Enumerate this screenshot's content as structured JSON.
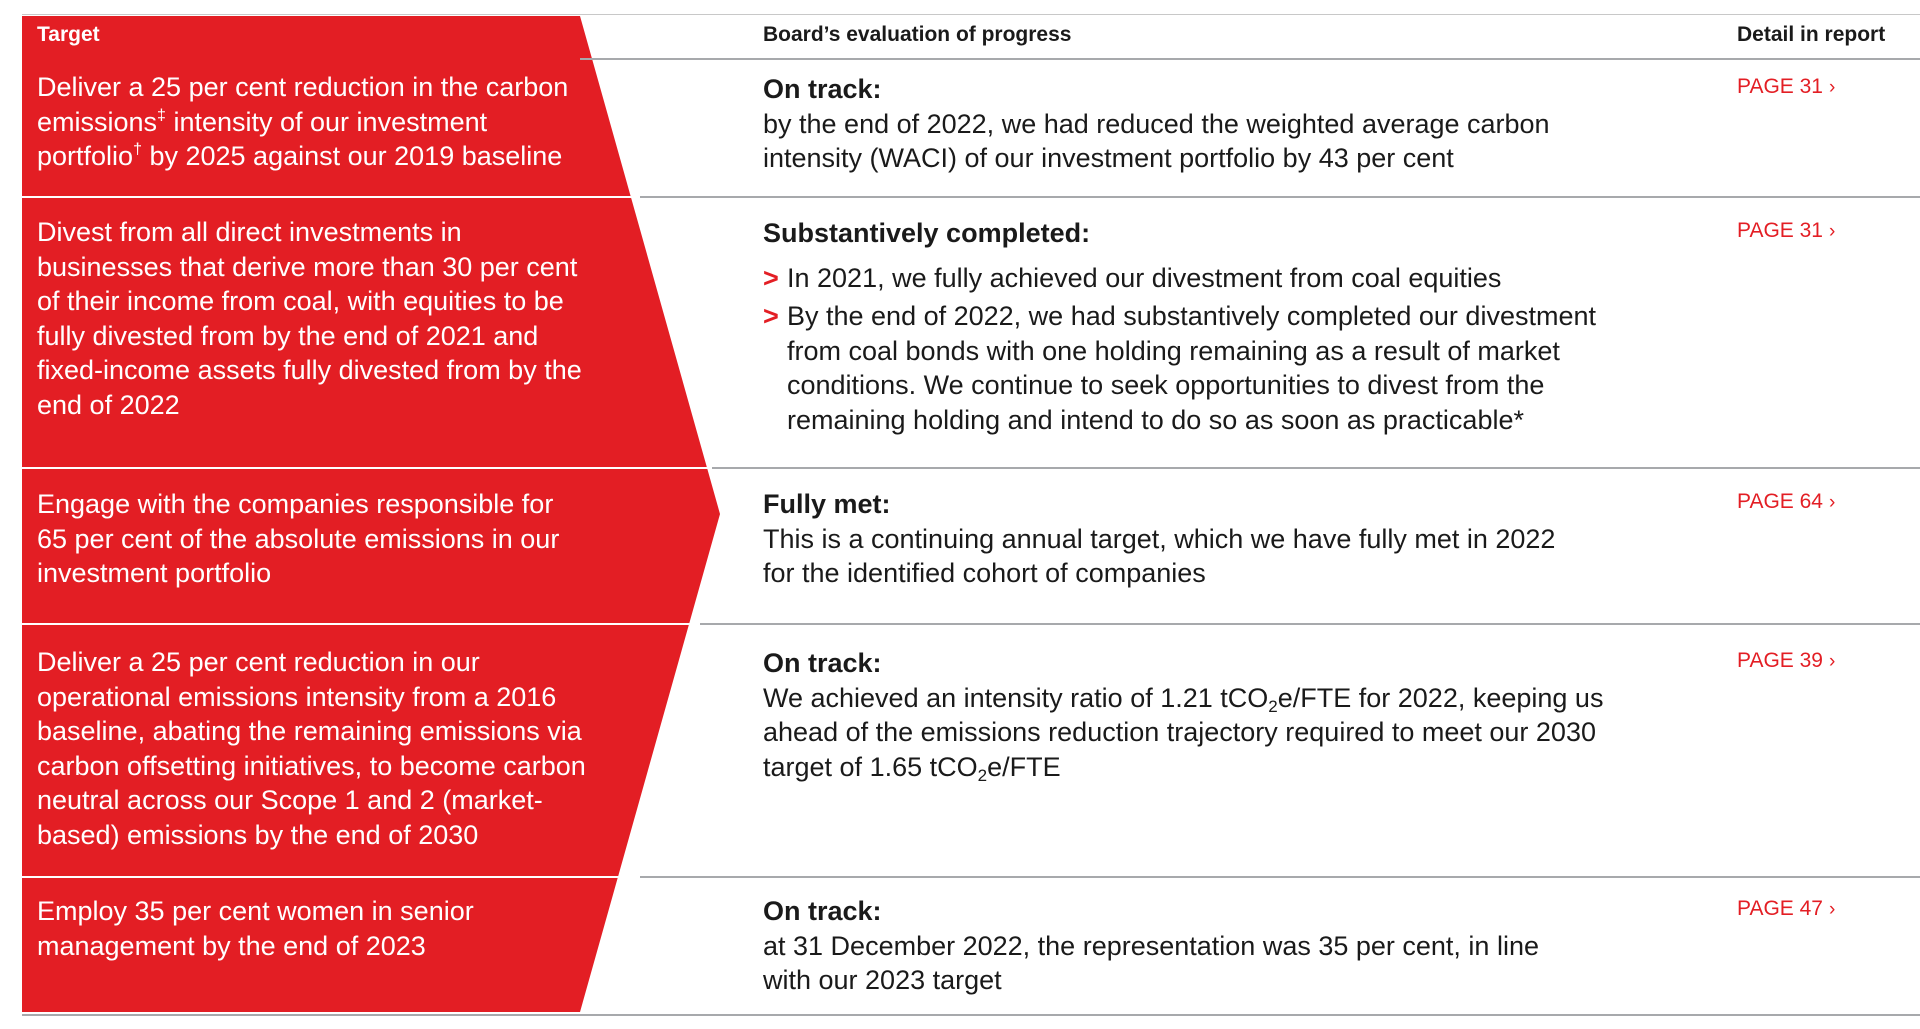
{
  "header": {
    "target": "Target",
    "board_evaluation": "Board’s evaluation of progress",
    "detail": "Detail in report"
  },
  "theme": {
    "accent": "#E31E24",
    "rule": "#A7A9AC",
    "text": "#1A1A1A"
  },
  "rows": [
    {
      "target_parts": [
        "Deliver a 25 per cent reduction in the carbon emissions",
        "‡",
        " intensity of our investment portfolio",
        "†",
        " by 2025 against our 2019 baseline"
      ],
      "status": "On track:",
      "evaluation": "by the end of 2022, we had reduced the weighted average carbon intensity (WACI) of our investment portfolio by 43 per cent",
      "page": "PAGE 31"
    },
    {
      "target": "Divest from all direct investments in businesses that derive more than 30 per cent of their income from coal, with equities to be fully divested from by the end of 2021 and fixed-income assets fully divested from by the end of 2022",
      "status": "Substantively completed:",
      "bullets": [
        "In 2021, we fully achieved our divestment from coal equities",
        "By the end of 2022, we had substantively completed our divestment from coal bonds with one holding remaining as a result of market conditions. We continue to seek opportunities to divest from the remaining holding and intend to do so as soon as practicable*"
      ],
      "page": "PAGE 31"
    },
    {
      "target": "Engage with the companies responsible for 65 per cent of the absolute emissions in our investment portfolio",
      "status": "Fully met:",
      "evaluation": "This is a continuing annual target, which we have fully met in 2022 for the identified cohort of companies",
      "page": "PAGE 64"
    },
    {
      "target": "Deliver a 25 per cent reduction in our operational emissions intensity from a 2016 baseline, abating the remaining emissions via carbon offsetting initiatives, to become carbon neutral across our Scope 1 and 2 (market-based) emissions by the end of 2030",
      "status": "On track:",
      "evaluation_parts": [
        "We achieved an intensity ratio of 1.21 tCO",
        "2",
        "e/FTE for 2022, keeping us ahead of the emissions reduction trajectory required to meet our 2030 target of 1.65 tCO",
        "2",
        "e/FTE"
      ],
      "page": "PAGE 39"
    },
    {
      "target": "Employ 35 per cent women in senior management by the end of 2023",
      "status": "On track:",
      "evaluation": "at 31 December 2022, the representation was 35 per cent, in line with our 2023 target",
      "page": "PAGE 47"
    }
  ],
  "icons": {
    "bullet": "chevron-right",
    "page_link": "chevron-right"
  }
}
